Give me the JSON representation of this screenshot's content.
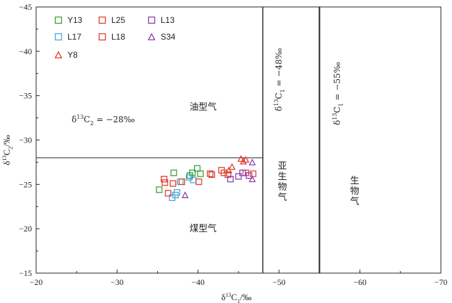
{
  "chart_data": {
    "type": "scatter",
    "title": "",
    "xlabel": "δ13C1/‰",
    "ylabel": "δ13C2/‰",
    "xlim": [
      -20,
      -70
    ],
    "ylim": [
      -15,
      -45
    ],
    "xticks": [
      "−20",
      "−30",
      "−40",
      "−50",
      "−60",
      "−70"
    ],
    "yticks": [
      "−45",
      "−40",
      "−35",
      "−30",
      "−25",
      "−20",
      "−15"
    ],
    "legend_position": "top-left",
    "boundaries": {
      "c2_line": -28,
      "c1_line_a": -48,
      "c1_line_b": -55
    },
    "annotations": {
      "c2_eq": "δ13C2 = −28‰",
      "c1_eq_a": "δ13C1 = −48‰",
      "c1_eq_b": "δ13C1 = −55‰"
    },
    "regions": {
      "oil_type_gas": "油型气",
      "coal_type_gas": "煤型气",
      "sub_biogenic_gas": "亚生物气",
      "biogenic_gas": "生物气"
    },
    "series": [
      {
        "name": "Y13",
        "marker": "square",
        "color": "#3aa03a",
        "points": [
          [
            -35.2,
            -24.4
          ],
          [
            -37.0,
            -26.3
          ],
          [
            -39.0,
            -26.0
          ],
          [
            -39.3,
            -26.3
          ],
          [
            -39.9,
            -26.8
          ],
          [
            -40.3,
            -26.2
          ]
        ]
      },
      {
        "name": "L17",
        "marker": "square",
        "color": "#4ba6d9",
        "points": [
          [
            -36.8,
            -23.5
          ],
          [
            -37.2,
            -23.8
          ],
          [
            -37.4,
            -24.1
          ],
          [
            -37.8,
            -25.3
          ],
          [
            -38.9,
            -25.8
          ],
          [
            -39.4,
            -25.5
          ]
        ]
      },
      {
        "name": "Y8",
        "marker": "triangle",
        "color": "#e03d2f",
        "points": [
          [
            -43.8,
            -26.6
          ],
          [
            -44.2,
            -27.0
          ],
          [
            -45.3,
            -27.9
          ],
          [
            -45.6,
            -27.6
          ],
          [
            -45.9,
            -27.8
          ]
        ]
      },
      {
        "name": "L25",
        "marker": "square",
        "color": "#e03d2f",
        "points": [
          [
            -35.8,
            -25.6
          ],
          [
            -36.9,
            -25.1
          ],
          [
            -38.0,
            -25.3
          ],
          [
            -40.1,
            -25.3
          ],
          [
            -41.5,
            -26.2
          ],
          [
            -43.2,
            -26.3
          ],
          [
            -46.8,
            -26.2
          ]
        ]
      },
      {
        "name": "L18",
        "marker": "square",
        "color": "#e03d2f",
        "points": [
          [
            -35.9,
            -25.2
          ],
          [
            -36.3,
            -24.0
          ],
          [
            -41.7,
            -26.1
          ],
          [
            -42.9,
            -26.6
          ],
          [
            -43.7,
            -26.1
          ],
          [
            -45.9,
            -26.3
          ]
        ]
      },
      {
        "name": "L13",
        "marker": "square",
        "color": "#8a3fb0",
        "points": [
          [
            -44.0,
            -25.6
          ],
          [
            -45.0,
            -25.9
          ],
          [
            -45.5,
            -26.3
          ],
          [
            -46.3,
            -26.0
          ]
        ]
      },
      {
        "name": "S34",
        "marker": "triangle",
        "color": "#8a3fb0",
        "points": [
          [
            -38.4,
            -23.8
          ],
          [
            -46.7,
            -27.5
          ],
          [
            -46.7,
            -25.6
          ]
        ]
      }
    ],
    "legend_order": [
      "Y13",
      "L25",
      "L13",
      "L17",
      "L18",
      "S34",
      "Y8"
    ]
  }
}
